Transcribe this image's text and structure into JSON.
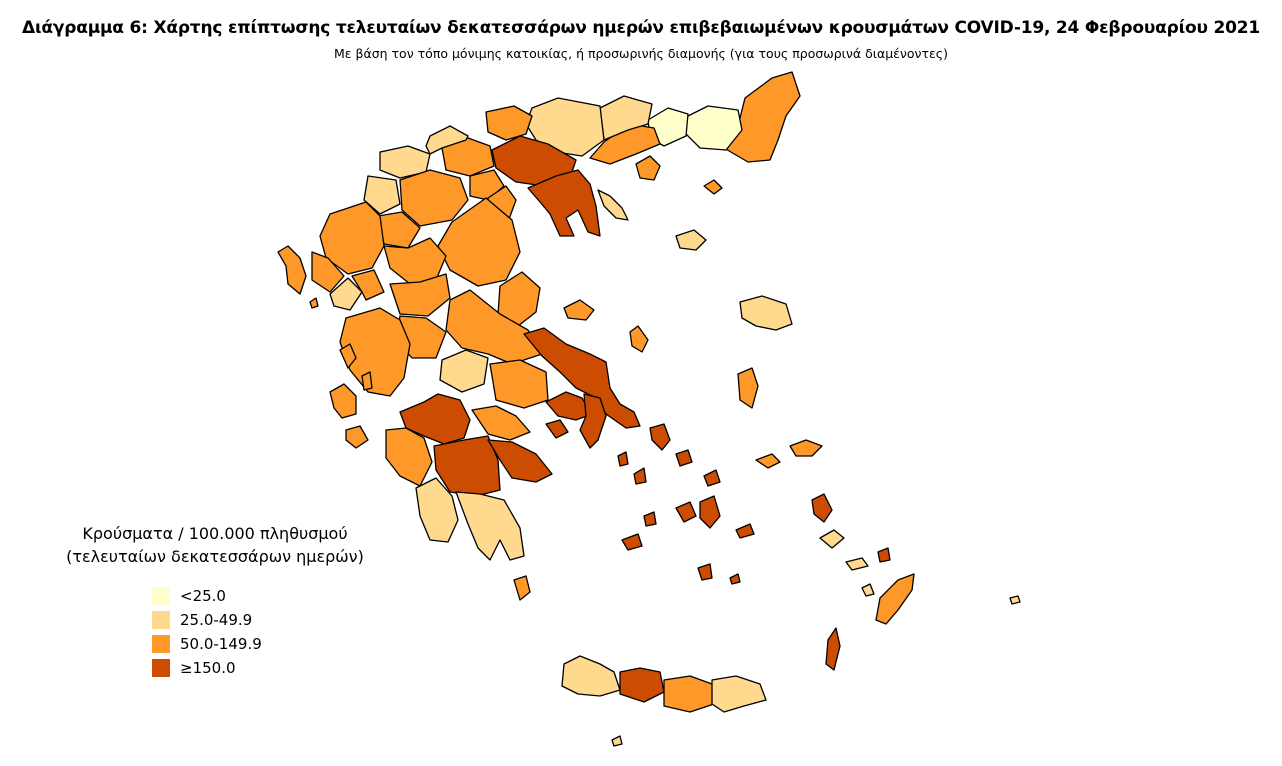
{
  "header": {
    "title": "Διάγραμμα 6: Χάρτης επίπτωσης τελευταίων δεκατεσσάρων ημερών επιβεβαιωμένων κρουσμάτων COVID-19, 24 Φεβρουαρίου 2021",
    "subtitle": "Με βάση τον τόπο μόνιμης κατοικίας, ή προσωρινής διαμονής (για τους προσωρινά διαμένοντες)"
  },
  "legend": {
    "title_line1": "Κρούσματα / 100.000 πληθυσμού",
    "title_line2": "(τελευταίων δεκατεσσάρων ημερών)",
    "classes": [
      {
        "label": "<25.0",
        "color": "#ffffcc"
      },
      {
        "label": "25.0-49.9",
        "color": "#fed98e"
      },
      {
        "label": "50.0-149.9",
        "color": "#fe9929"
      },
      {
        "label": "≥150.0",
        "color": "#cc4c02"
      }
    ]
  },
  "map": {
    "colors": {
      "c1": "#ffffcc",
      "c2": "#fed98e",
      "c3": "#fe9929",
      "c4": "#cc4c02"
    }
  }
}
